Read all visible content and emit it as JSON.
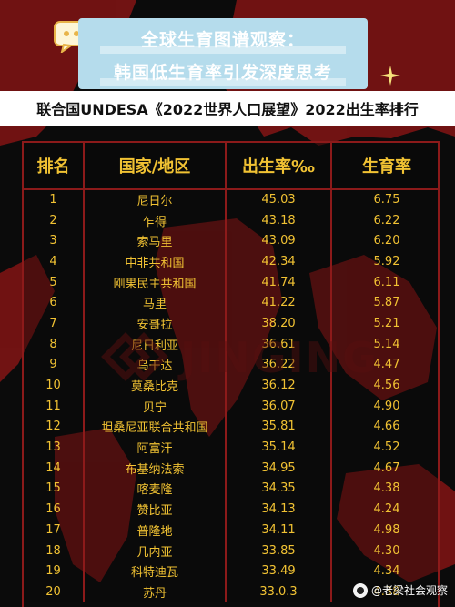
{
  "title": {
    "line1": "全球生育图谱观察：",
    "line2": "韩国低生育率引发深度思考"
  },
  "subtitle": "联合国UNDESA《2022世界人口展望》2022出生率排行",
  "table": {
    "headers": [
      "排名",
      "国家/地区",
      "出生率‰",
      "生育率"
    ],
    "rows": [
      [
        "1",
        "尼日尔",
        "45.03",
        "6.75"
      ],
      [
        "2",
        "乍得",
        "43.18",
        "6.22"
      ],
      [
        "3",
        "索马里",
        "43.09",
        "6.20"
      ],
      [
        "4",
        "中非共和国",
        "42.34",
        "5.92"
      ],
      [
        "5",
        "刚果民主共和国",
        "41.74",
        "6.11"
      ],
      [
        "6",
        "马里",
        "41.22",
        "5.87"
      ],
      [
        "7",
        "安哥拉",
        "38.20",
        "5.21"
      ],
      [
        "8",
        "尼日利亚",
        "36.61",
        "5.14"
      ],
      [
        "9",
        "乌干达",
        "36.22",
        "4.47"
      ],
      [
        "10",
        "莫桑比克",
        "36.12",
        "4.56"
      ],
      [
        "11",
        "贝宁",
        "36.07",
        "4.90"
      ],
      [
        "12",
        "坦桑尼亚联合共和国",
        "35.81",
        "4.66"
      ],
      [
        "13",
        "阿富汗",
        "35.14",
        "4.52"
      ],
      [
        "14",
        "布基纳法索",
        "34.95",
        "4.67"
      ],
      [
        "15",
        "喀麦隆",
        "34.35",
        "4.38"
      ],
      [
        "16",
        "赞比亚",
        "34.13",
        "4.24"
      ],
      [
        "17",
        "普隆地",
        "34.11",
        "4.98"
      ],
      [
        "18",
        "几内亚",
        "33.85",
        "4.30"
      ],
      [
        "19",
        "科特迪瓦",
        "33.49",
        "4.34"
      ],
      [
        "20",
        "苏丹",
        "33.0.3",
        "4.38"
      ]
    ]
  },
  "watermark": "JINGING",
  "source": "@老梁社会观察",
  "colors": {
    "background": "#0b0b0b",
    "map": "#7a1414",
    "grid": "#8c1a1a",
    "text": "#f1c233",
    "banner": "#b5dcec"
  },
  "icons": [
    "chat-bubble-icon",
    "sparkle-icon",
    "jinging-logo-icon",
    "author-avatar-icon"
  ]
}
